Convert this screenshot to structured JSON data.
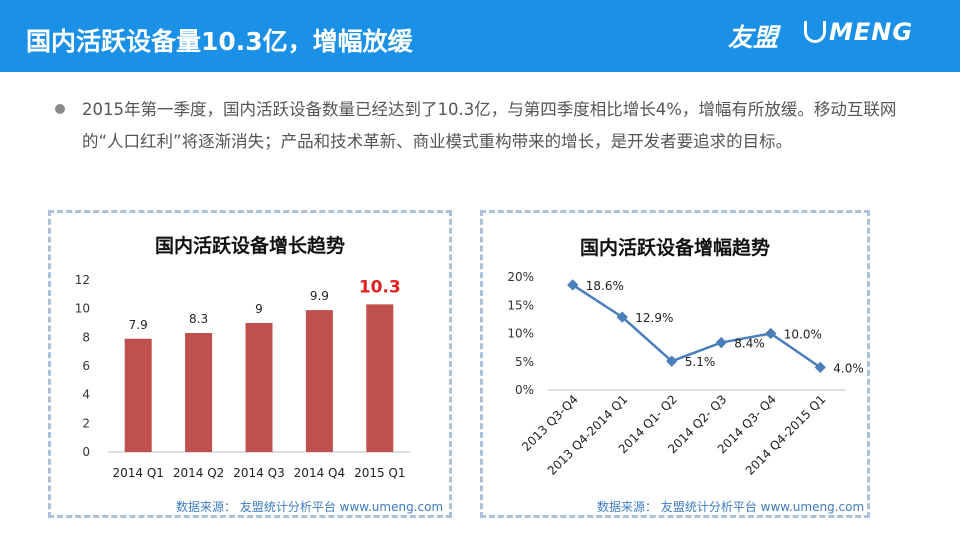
{
  "header": {
    "title": "国内活跃设备量10.3亿，增幅放缓",
    "logo_cn": "友盟",
    "logo_en": "MENG",
    "bg_color": "#1a90e6"
  },
  "bullet": {
    "text": "2015年第一季度，国内活跃设备数量已经达到了10.3亿，与第四季度相比增长4%，增幅有所放缓。移动互联网的“人口红利”将逐渐消失；产品和技术革新、商业模式重构带来的增长，是开发者要追求的目标。"
  },
  "chart_data": [
    {
      "type": "bar",
      "title": "国内活跃设备增长趋势",
      "categories": [
        "2014 Q1",
        "2014 Q2",
        "2014 Q3",
        "2014 Q4",
        "2015 Q1"
      ],
      "values": [
        7.9,
        8.3,
        9,
        9.9,
        10.3
      ],
      "value_labels": [
        "7.9",
        "8.3",
        "9",
        "9.9",
        "10.3"
      ],
      "highlight_index": 4,
      "yticks": [
        "0",
        "2",
        "4",
        "6",
        "8",
        "10",
        "12"
      ],
      "ylim": [
        0,
        12
      ],
      "bar_color": "#c0504d",
      "highlight_label_color": "#e02020",
      "source": "数据来源： 友盟统计分析平台 www.umeng.com"
    },
    {
      "type": "line",
      "title": "国内活跃设备增幅趋势",
      "categories": [
        "2013 Q3-Q4",
        "2013 Q4-2014 Q1",
        "2014 Q1- Q2",
        "2014 Q2- Q3",
        "2014 Q3- Q4",
        "2014 Q4-2015 Q1"
      ],
      "values": [
        18.6,
        12.9,
        5.1,
        8.4,
        10.0,
        4.0
      ],
      "value_labels": [
        "18.6%",
        "12.9%",
        "5.1%",
        "8.4%",
        "10.0%",
        "4.0%"
      ],
      "yticks": [
        "0%",
        "5%",
        "10%",
        "15%",
        "20%"
      ],
      "ylim": [
        0,
        20
      ],
      "line_color": "#4a7ebb",
      "source": "数据来源： 友盟统计分析平台 www.umeng.com"
    }
  ]
}
